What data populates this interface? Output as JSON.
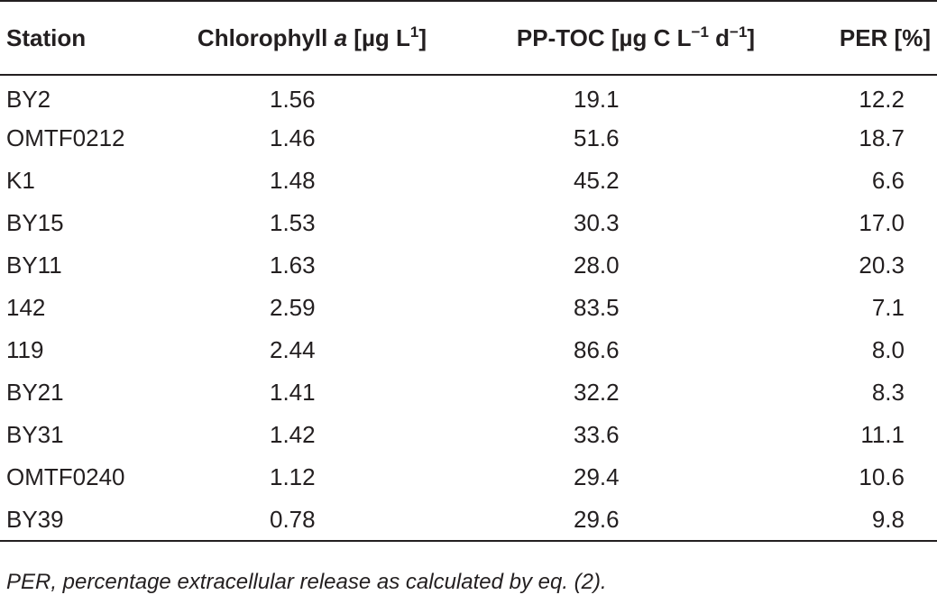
{
  "table": {
    "headers": {
      "station": "Station",
      "chl_prefix": "Chlorophyll ",
      "chl_italic": "a",
      "chl_unit_prefix": " [µg L",
      "chl_sup": "1",
      "chl_unit_suffix": "]",
      "pp_prefix": "PP-TOC [µg C L",
      "pp_sup1": "−1",
      "pp_mid": " d",
      "pp_sup2": "−1",
      "pp_suffix": "]",
      "per": "PER [%]"
    },
    "rows": [
      {
        "station": "BY2",
        "chl": "1.56",
        "pp": "19.1",
        "per": "12.2"
      },
      {
        "station": "OMTF0212",
        "chl": "1.46",
        "pp": "51.6",
        "per": "18.7"
      },
      {
        "station": "K1",
        "chl": "1.48",
        "pp": "45.2",
        "per": "6.6"
      },
      {
        "station": "BY15",
        "chl": "1.53",
        "pp": "30.3",
        "per": "17.0"
      },
      {
        "station": "BY11",
        "chl": "1.63",
        "pp": "28.0",
        "per": "20.3"
      },
      {
        "station": "142",
        "chl": "2.59",
        "pp": "83.5",
        "per": "7.1"
      },
      {
        "station": "119",
        "chl": "2.44",
        "pp": "86.6",
        "per": "8.0"
      },
      {
        "station": "BY21",
        "chl": "1.41",
        "pp": "32.2",
        "per": "8.3"
      },
      {
        "station": "BY31",
        "chl": "1.42",
        "pp": "33.6",
        "per": "11.1"
      },
      {
        "station": "OMTF0240",
        "chl": "1.12",
        "pp": "29.4",
        "per": "10.6"
      },
      {
        "station": "BY39",
        "chl": "0.78",
        "pp": "29.6",
        "per": "9.8"
      }
    ]
  },
  "footnote": "PER, percentage extracellular release as calculated by eq. (2)."
}
